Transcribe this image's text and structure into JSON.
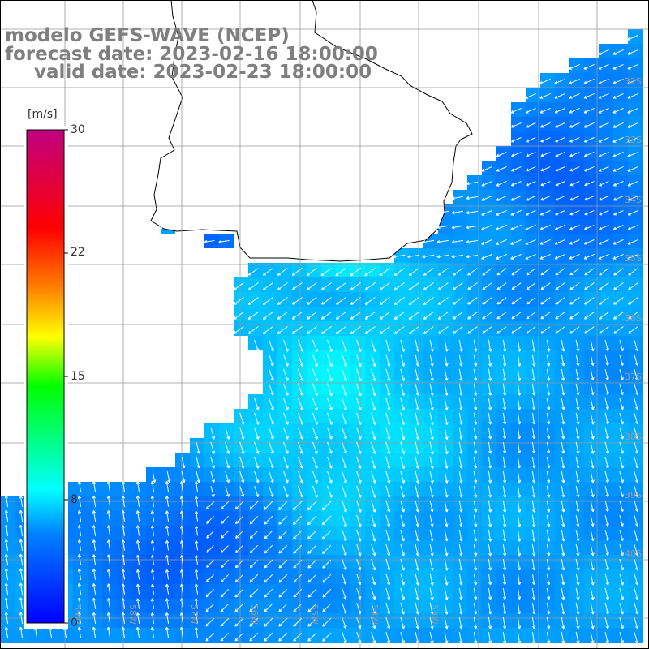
{
  "header": {
    "line1": "modelo GEFS-WAVE (NCEP)",
    "line2": "forecast date: 2023-02-16 18:00:00",
    "line3": "valid date: 2023-02-23 18:00:00"
  },
  "colorbar": {
    "unit": "[m/s]",
    "min": 0,
    "max": 30,
    "ticks": [
      "30",
      "22",
      "15",
      "8",
      "0"
    ],
    "colors": [
      "#0000ff",
      "#0080ff",
      "#00ffff",
      "#00ff00",
      "#ffff00",
      "#ff8000",
      "#ff0000",
      "#c00080"
    ]
  },
  "field": {
    "variable": "wind speed and direction",
    "land_color": "#ffffff",
    "grid_color": "#999999"
  },
  "graticule": {
    "lat_labels": [
      "32S",
      "33S",
      "34S",
      "35S",
      "36S",
      "37S",
      "38S",
      "39S",
      "40S"
    ],
    "lon_labels": [
      "59W",
      "58W",
      "57W",
      "56W",
      "55W",
      "54W",
      "53W"
    ]
  }
}
